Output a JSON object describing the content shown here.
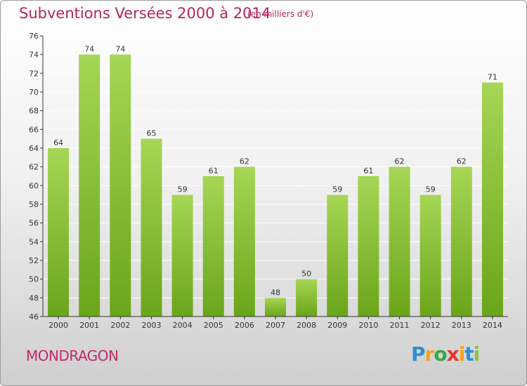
{
  "header": {
    "title": "Subventions Versées 2000 à 2014",
    "subtitle": "(en milliers d'€)"
  },
  "footer": {
    "place": "MONDRAGON",
    "logo_letters": [
      "P",
      "r",
      "o",
      "x",
      "i",
      "t",
      "i"
    ],
    "logo_colors": [
      "#2a8fd6",
      "#f2a51a",
      "#3aa648",
      "#e8352b",
      "#f2a51a",
      "#2a8fd6",
      "#8bc34a"
    ]
  },
  "colors": {
    "bar_light": "#a6d655",
    "bar_dark": "#6aa51a",
    "title": "#b5245e",
    "grid": "#ffffff",
    "axis": "#333333"
  },
  "chart_data": {
    "type": "bar",
    "title": "Subventions Versées 2000 à 2014",
    "subtitle": "(en milliers d'€)",
    "categories": [
      "2000",
      "2001",
      "2002",
      "2003",
      "2004",
      "2005",
      "2006",
      "2007",
      "2008",
      "2009",
      "2010",
      "2011",
      "2012",
      "2013",
      "2014"
    ],
    "values": [
      64,
      74,
      74,
      65,
      59,
      61,
      62,
      48,
      50,
      59,
      61,
      62,
      59,
      62,
      71
    ],
    "ylim": [
      46,
      76
    ],
    "yticks": [
      46,
      48,
      50,
      52,
      54,
      56,
      58,
      60,
      62,
      64,
      66,
      68,
      70,
      72,
      74,
      76
    ],
    "grid": true,
    "legend": "none"
  }
}
